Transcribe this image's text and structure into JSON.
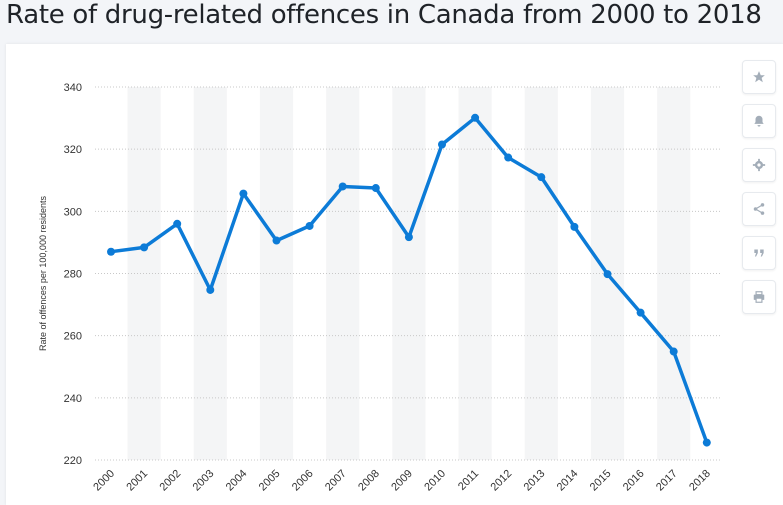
{
  "page": {
    "title": "Rate of drug-related offences in Canada from 2000 to 2018"
  },
  "toolbar": {
    "buttons": [
      {
        "name": "star-icon"
      },
      {
        "name": "bell-icon"
      },
      {
        "name": "gear-icon"
      },
      {
        "name": "share-icon"
      },
      {
        "name": "quote-icon"
      },
      {
        "name": "print-icon"
      }
    ]
  },
  "colors": {
    "line": "#0c7bd7",
    "grid": "#c8c8c8",
    "band": "#f4f5f6",
    "icon": "#a3adb8"
  },
  "chart_data": {
    "type": "line",
    "title": "Rate of drug-related offences in Canada from 2000 to 2018",
    "xlabel": "",
    "ylabel": "Rate of offences per 100,000 residents",
    "categories": [
      "2000",
      "2001",
      "2002",
      "2003",
      "2004",
      "2005",
      "2006",
      "2007",
      "2008",
      "2009",
      "2010",
      "2011",
      "2012",
      "2013",
      "2014",
      "2015",
      "2016",
      "2017",
      "2018"
    ],
    "values": [
      287,
      288.4,
      296,
      274.7,
      305.7,
      290.6,
      295.3,
      308,
      307.5,
      291.7,
      321.5,
      330.1,
      317.3,
      311,
      295,
      279.8,
      267.4,
      254.9,
      225.6
    ],
    "yticks": [
      220,
      240,
      260,
      280,
      300,
      320,
      340
    ],
    "ylim": [
      220,
      340
    ],
    "grid": true,
    "legend": "none"
  }
}
